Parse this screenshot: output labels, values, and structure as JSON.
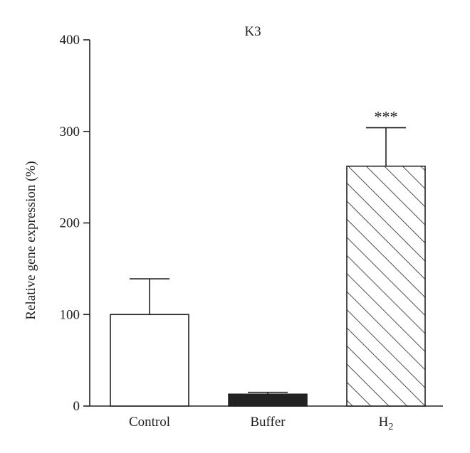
{
  "chart_data": {
    "type": "bar",
    "title": "K3",
    "xlabel": "",
    "ylabel": "Relative gene expression (%)",
    "ylim": [
      0,
      400
    ],
    "yticks": [
      0,
      100,
      200,
      300,
      400
    ],
    "grid": false,
    "legend": "none",
    "categories": [
      {
        "base": "Control",
        "sub": ""
      },
      {
        "base": "Buffer",
        "sub": ""
      },
      {
        "base": "H",
        "sub": "2"
      }
    ],
    "values": [
      100,
      13,
      262
    ],
    "errors": [
      39,
      2,
      42
    ],
    "fills": [
      "white",
      "black",
      "hatch"
    ],
    "annotations": [
      "",
      "",
      "***"
    ],
    "colors": {
      "ink": "#222222",
      "background": "#ffffff"
    }
  }
}
